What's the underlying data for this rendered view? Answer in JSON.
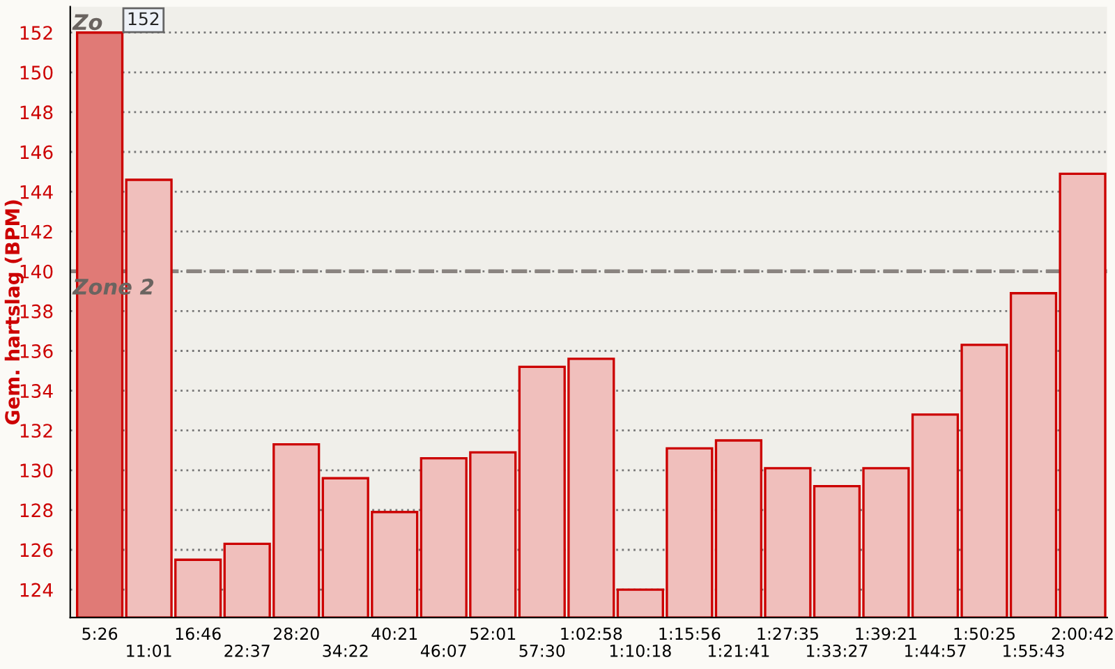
{
  "chart_data": {
    "type": "bar",
    "ylabel": "Gem. hartslag (BPM)",
    "categories": [
      "5:26",
      "11:01",
      "16:46",
      "22:37",
      "28:20",
      "34:22",
      "40:21",
      "46:07",
      "52:01",
      "57:30",
      "1:02:58",
      "1:10:18",
      "1:15:56",
      "1:21:41",
      "1:27:35",
      "1:33:27",
      "1:39:21",
      "1:44:57",
      "1:50:25",
      "1:55:43",
      "2:00:42"
    ],
    "values": [
      152,
      144.6,
      125.5,
      126.3,
      131.3,
      129.6,
      127.9,
      130.6,
      130.9,
      135.2,
      135.6,
      124.0,
      131.1,
      131.5,
      130.1,
      129.2,
      130.1,
      132.8,
      136.3,
      138.9,
      144.9
    ],
    "colors": [
      "#e07a76",
      "#f0bfbc",
      "#f0bfbc",
      "#f0bfbc",
      "#f0bfbc",
      "#f0bfbc",
      "#f0bfbc",
      "#f0bfbc",
      "#f0bfbc",
      "#f0bfbc",
      "#f0bfbc",
      "#f0bfbc",
      "#f0bfbc",
      "#f0bfbc",
      "#f0bfbc",
      "#f0bfbc",
      "#f0bfbc",
      "#f0bfbc",
      "#f0bfbc",
      "#f0bfbc",
      "#f0bfbc"
    ],
    "ylim": [
      122.6,
      153.3
    ],
    "yticks": [
      124,
      126,
      128,
      130,
      132,
      134,
      136,
      138,
      140,
      142,
      144,
      146,
      148,
      150,
      152
    ],
    "grid": "y",
    "bands": [
      {
        "axis": "y",
        "from": 140,
        "to": 153.3,
        "label": "Zo",
        "color": "#dedad4"
      },
      {
        "axis": "y",
        "from": 122.6,
        "to": 140,
        "label": "Zone 2",
        "color": "#dedad4"
      }
    ],
    "ref_lines": [
      {
        "axis": "y",
        "value": 140,
        "color": "#8a8480",
        "line_style": "dashed"
      }
    ],
    "annotations": [
      {
        "text": "152",
        "x": "5:26",
        "y": 152
      }
    ]
  }
}
